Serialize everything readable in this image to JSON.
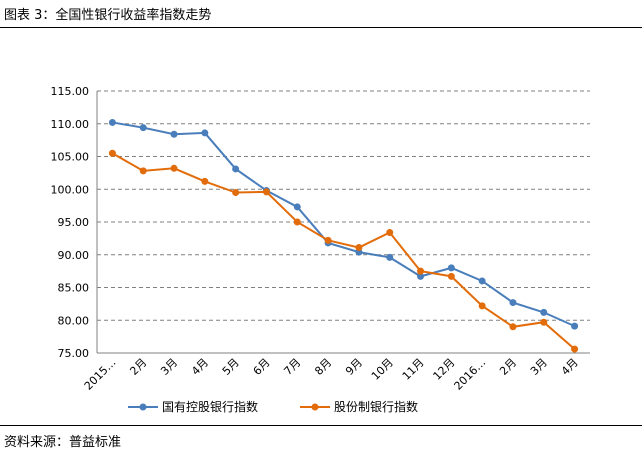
{
  "title": "图表 3：全国性银行收益率指数走势",
  "source": "资料来源：普益标准",
  "colors": {
    "blue": "#4a7ebb",
    "orange": "#e36c0a",
    "grid": "#808080"
  },
  "chart_data": {
    "type": "line",
    "title": "",
    "categories": [
      "2015…",
      "2月",
      "3月",
      "4月",
      "5月",
      "6月",
      "7月",
      "8月",
      "9月",
      "10月",
      "11月",
      "12月",
      "2016…",
      "2月",
      "3月",
      "4月"
    ],
    "ylim": [
      75,
      115
    ],
    "yticks": [
      "75.00",
      "80.00",
      "85.00",
      "90.00",
      "95.00",
      "100.00",
      "105.00",
      "110.00",
      "115.00"
    ],
    "grid": true,
    "legend": "bottom",
    "series": [
      {
        "name": "国有控股银行指数",
        "values": [
          110.2,
          109.4,
          108.4,
          108.6,
          103.1,
          99.8,
          97.3,
          91.8,
          90.4,
          89.6,
          86.7,
          88.0,
          86.0,
          82.7,
          81.2,
          79.1
        ]
      },
      {
        "name": "股份制银行指数",
        "values": [
          105.5,
          102.8,
          103.2,
          101.2,
          99.5,
          99.6,
          95.0,
          92.2,
          91.1,
          93.4,
          87.5,
          86.7,
          82.2,
          79.0,
          79.7,
          75.6
        ]
      }
    ]
  }
}
